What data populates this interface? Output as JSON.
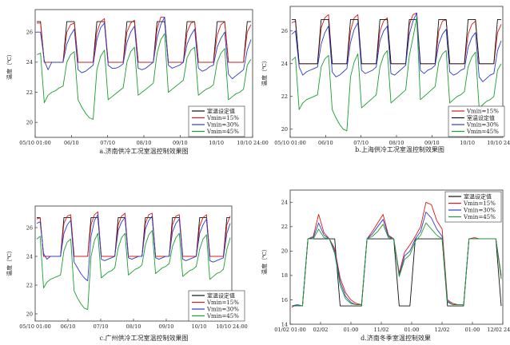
{
  "chart_data": [
    {
      "type": "line",
      "title": "a.济南供冷工况室温控制效果图",
      "ylabel": "温度（℃）",
      "ylim": [
        19,
        27.5
      ],
      "yticks": [
        20,
        22,
        24,
        26
      ],
      "xticks": [
        "05/10 01:00",
        "06/10",
        "07/10",
        "08/10",
        "09/10",
        "10/10",
        "10/10 24:00"
      ],
      "legend_position": "bottom-right",
      "series": [
        {
          "name": "室温设定值",
          "color": "#111111",
          "values": [
            26.7,
            26.7,
            24,
            24,
            24,
            24,
            24,
            24,
            26.7,
            26.7,
            26.7,
            24,
            24,
            24,
            24,
            24,
            26.7,
            26.7,
            26.7,
            24,
            24,
            24,
            24,
            24,
            26.7,
            26.7,
            26.7,
            24,
            24,
            24,
            24,
            24,
            26.7,
            26.7,
            26.7,
            24,
            24,
            24,
            24,
            24,
            26.7,
            26.7,
            26.7,
            24,
            24,
            24,
            24,
            24,
            26.7,
            26.7,
            26.7,
            24,
            24,
            24,
            24,
            24,
            26.7,
            26.7
          ]
        },
        {
          "name": "Vmin=15%",
          "color": "#d7191c",
          "values": [
            26.6,
            26.6,
            24,
            24,
            24,
            24,
            24,
            24,
            26,
            26.5,
            26.6,
            24,
            24,
            24,
            24,
            24,
            26,
            26.7,
            26.9,
            24,
            24,
            24,
            24,
            24,
            26,
            26.6,
            26.8,
            24,
            24,
            24,
            24,
            24,
            26.2,
            27,
            27,
            24,
            24,
            24,
            24,
            24,
            26,
            26.6,
            26.7,
            24,
            24,
            24,
            24,
            24,
            25.8,
            26.5,
            26.7,
            24,
            24,
            24,
            24,
            24,
            26,
            26.5
          ]
        },
        {
          "name": "Vmin=30%",
          "color": "#2c3cc8",
          "values": [
            26,
            26,
            24.1,
            23.5,
            24,
            24,
            24,
            24,
            25.2,
            25.8,
            26.2,
            23.5,
            23.3,
            23.4,
            23.6,
            23.8,
            25.5,
            26.3,
            26.6,
            23.8,
            23.6,
            23.6,
            23.7,
            23.9,
            25.3,
            26,
            26.4,
            23.6,
            23.5,
            23.6,
            23.8,
            24,
            25.6,
            26.5,
            27,
            23.8,
            23.6,
            23.7,
            23.8,
            24,
            25.2,
            25.8,
            26.2,
            23.6,
            23.4,
            23.5,
            23.7,
            23.8,
            25,
            25.6,
            26,
            23.2,
            22.9,
            23.1,
            23.3,
            23.5,
            24.8,
            25.5
          ]
        },
        {
          "name": "Vmin=45%",
          "color": "#1a9e2e",
          "values": [
            24.5,
            24.6,
            21.3,
            21.8,
            22,
            22.1,
            22.3,
            22.4,
            24,
            24.5,
            24.7,
            21.5,
            21,
            20.6,
            20.3,
            20.2,
            23.5,
            24.4,
            24.8,
            21.5,
            21.7,
            21.9,
            22.1,
            22.3,
            24,
            24.7,
            25,
            21.8,
            22,
            22.2,
            22.4,
            22.6,
            24.6,
            25.5,
            25.9,
            22,
            22.2,
            22.4,
            22.6,
            22.8,
            24.3,
            24.8,
            25,
            21.8,
            22,
            22.2,
            22.3,
            22.5,
            24,
            24.6,
            24.9,
            21.5,
            21.7,
            21.9,
            22,
            22.2,
            23.8,
            24.2
          ]
        }
      ]
    },
    {
      "type": "line",
      "title": "b.上海供冷工况室温控制效果图",
      "ylabel": "温度（℃）",
      "ylim": [
        19.5,
        27.5
      ],
      "yticks": [
        20,
        22,
        24,
        26
      ],
      "xticks": [
        "05/10 01:00",
        "06/10",
        "07/10",
        "08/10",
        "09/10",
        "10/10",
        "10/10 24:00"
      ],
      "legend_position": "bottom-right",
      "series": [
        {
          "name": "Vmin=15%",
          "color": "#d7191c",
          "values": [
            26.5,
            26.6,
            24,
            24,
            24,
            24,
            24,
            24,
            26.2,
            26.8,
            27,
            24,
            24,
            24,
            24,
            24,
            26,
            26.8,
            27,
            24,
            24,
            24,
            24,
            24,
            26,
            26.6,
            26.8,
            24,
            24,
            24,
            24,
            24,
            26.4,
            27,
            27.1,
            24,
            24,
            24,
            24,
            24,
            26,
            26.6,
            26.7,
            24,
            24,
            24,
            24,
            24,
            25.8,
            26.4,
            26.6,
            24,
            24,
            24,
            24,
            24,
            25.9,
            26.4
          ]
        },
        {
          "name": "室温设定值",
          "color": "#111111",
          "values": [
            26.7,
            26.7,
            24,
            24,
            24,
            24,
            24,
            24,
            26.7,
            26.7,
            26.7,
            24,
            24,
            24,
            24,
            24,
            26.7,
            26.7,
            26.7,
            24,
            24,
            24,
            24,
            24,
            26.7,
            26.7,
            26.7,
            24,
            24,
            24,
            24,
            24,
            26.7,
            26.7,
            26.7,
            24,
            24,
            24,
            24,
            24,
            26.7,
            26.7,
            26.7,
            24,
            24,
            24,
            24,
            24,
            26.7,
            26.7,
            26.7,
            24,
            24,
            24,
            24,
            24,
            26.7,
            26.7
          ]
        },
        {
          "name": "Vmin=30%",
          "color": "#2c3cc8",
          "values": [
            25.8,
            26,
            23.8,
            23.3,
            23.5,
            23.6,
            23.7,
            23.8,
            25.2,
            25.9,
            26.3,
            23.5,
            23.2,
            23.3,
            23.5,
            23.7,
            25.3,
            26.1,
            26.5,
            23.6,
            23.4,
            23.5,
            23.6,
            23.8,
            25.4,
            26,
            26.3,
            23.4,
            23.3,
            23.5,
            23.7,
            23.9,
            25.8,
            26.6,
            27.1,
            23.6,
            23.4,
            23.6,
            23.7,
            23.9,
            25.2,
            25.8,
            26.1,
            23.5,
            23.3,
            23.4,
            23.6,
            23.7,
            25,
            25.6,
            25.9,
            23.2,
            22.9,
            23.1,
            23.3,
            23.4,
            24.8,
            25.4
          ]
        },
        {
          "name": "Vmin=45%",
          "color": "#1a9e2e",
          "values": [
            24.2,
            24.4,
            21.2,
            21.6,
            21.8,
            21.9,
            22,
            22.1,
            23.8,
            24.3,
            24.5,
            21.2,
            20.7,
            20.3,
            20,
            19.9,
            23.2,
            24.1,
            24.6,
            21.3,
            21.5,
            21.7,
            21.9,
            22.1,
            23.8,
            24.5,
            24.8,
            21.6,
            21.8,
            22,
            22.2,
            22.4,
            24.5,
            25.6,
            26.8,
            21.8,
            22,
            22.2,
            22.4,
            22.6,
            24.1,
            24.6,
            24.8,
            21.6,
            21.8,
            22,
            22.1,
            22.3,
            23.8,
            24.4,
            24.7,
            21.3,
            21.5,
            21.7,
            21.8,
            22,
            23.6,
            24
          ]
        }
      ]
    },
    {
      "type": "line",
      "title": "c.广州供冷工况室温控制效果图",
      "ylabel": "温度（℃）",
      "ylim": [
        19.5,
        27.5
      ],
      "yticks": [
        20,
        22,
        24,
        26
      ],
      "xticks": [
        "05/10 01:00",
        "06/10",
        "07/10",
        "08/10",
        "09/10",
        "10/10",
        "10/10 24:00"
      ],
      "legend_position": "bottom-right",
      "series": [
        {
          "name": "室温设定值",
          "color": "#111111",
          "values": [
            26.7,
            26.7,
            24,
            24,
            24,
            24,
            24,
            24,
            26.7,
            26.7,
            26.7,
            24,
            24,
            24,
            24,
            24,
            26.7,
            26.7,
            26.7,
            24,
            24,
            24,
            24,
            24,
            26.7,
            26.7,
            26.7,
            24,
            24,
            24,
            24,
            24,
            26.7,
            26.7,
            26.7,
            24,
            24,
            24,
            24,
            24,
            26.7,
            26.7,
            26.7,
            24,
            24,
            24,
            24,
            24,
            26.7,
            26.7,
            26.7,
            24,
            24,
            24,
            24,
            24,
            26.7,
            26.7
          ]
        },
        {
          "name": "Vmin=15%",
          "color": "#d7191c",
          "values": [
            26.6,
            26.7,
            24,
            24,
            24,
            24,
            24,
            24,
            26.3,
            26.8,
            26.9,
            24,
            24,
            24,
            24,
            24,
            26.2,
            26.9,
            27.1,
            24,
            24,
            24,
            24,
            24,
            26.2,
            26.8,
            27,
            24,
            24,
            24,
            24,
            24,
            26.3,
            26.9,
            27,
            24,
            24,
            24,
            24,
            24,
            26.2,
            26.8,
            26.9,
            24,
            24,
            24,
            24,
            24,
            26.1,
            26.7,
            26.9,
            24,
            24,
            24,
            24,
            24,
            26.2,
            26.8
          ]
        },
        {
          "name": "Vmin=30%",
          "color": "#2c3cc8",
          "values": [
            26.3,
            26.4,
            24.2,
            23.8,
            24,
            24,
            24,
            24,
            25.6,
            26.2,
            26.5,
            23.6,
            23.2,
            22.8,
            22.5,
            22.3,
            25.4,
            26.5,
            26.9,
            23.8,
            23.7,
            23.8,
            23.9,
            24,
            25.8,
            26.4,
            26.7,
            23.9,
            23.8,
            23.9,
            24,
            24,
            25.9,
            26.5,
            26.8,
            23.9,
            23.8,
            23.9,
            24,
            24,
            25.7,
            26.3,
            26.6,
            23.8,
            23.7,
            23.8,
            23.9,
            24,
            25.6,
            26.2,
            26.6,
            23.7,
            23.6,
            23.7,
            23.8,
            23.9,
            25.6,
            26.3
          ]
        },
        {
          "name": "Vmin=45%",
          "color": "#1a9e2e",
          "values": [
            25.2,
            25.4,
            21.8,
            22.2,
            22.4,
            22.5,
            22.6,
            22.7,
            24.4,
            25,
            25.2,
            21.6,
            21.1,
            20.7,
            20.4,
            20.3,
            24,
            25.1,
            25.6,
            22.5,
            22.7,
            22.9,
            23,
            23.2,
            24.6,
            25.3,
            25.6,
            22.7,
            22.9,
            23.1,
            23.2,
            23.4,
            24.8,
            25.5,
            25.8,
            22.8,
            23,
            23.2,
            23.3,
            23.5,
            24.7,
            25.3,
            25.6,
            22.6,
            22.8,
            23,
            23.1,
            23.3,
            24.5,
            25.2,
            25.5,
            22.4,
            22.6,
            22.8,
            22.9,
            23.1,
            24.5,
            25.3
          ]
        }
      ]
    },
    {
      "type": "line",
      "title": "d.济南冬季室温控制效果",
      "ylabel": "温度（℃）",
      "ylim": [
        14,
        25
      ],
      "yticks": [
        14,
        16,
        18,
        20,
        22,
        24
      ],
      "xticks": [
        "01/02 01:00",
        "02/02",
        "01:00",
        "11/02",
        "01:00",
        "12/02",
        "01:00",
        "12/02 24:00"
      ],
      "legend_position": "top-right",
      "series": [
        {
          "name": "室温设定值",
          "color": "#111111",
          "values": [
            15.5,
            15.5,
            15.5,
            21,
            21,
            21,
            21,
            21,
            21,
            15.5,
            15.5,
            15.5,
            15.5,
            15.5,
            21,
            21,
            21,
            21,
            21,
            21,
            15.5,
            15.5,
            15.5,
            21,
            21,
            21,
            21,
            21,
            21,
            15.5,
            15.5,
            15.5,
            15.5,
            21,
            21,
            21,
            21,
            21,
            21,
            15.5
          ]
        },
        {
          "name": "Vmin=15%",
          "color": "#d7191c",
          "values": [
            15.4,
            15.6,
            15.5,
            21,
            21.2,
            23,
            21.5,
            21,
            20.2,
            17.8,
            16.6,
            16,
            15.7,
            15.6,
            21,
            21.6,
            22.3,
            23,
            21.3,
            21,
            18.2,
            19.9,
            20.5,
            21.2,
            22,
            24,
            23.8,
            22.5,
            21.8,
            16,
            15.7,
            15.6,
            15.6,
            21,
            21.1,
            21,
            21,
            21,
            21,
            18
          ]
        },
        {
          "name": "Vmin=30%",
          "color": "#2c3cc8",
          "values": [
            15.5,
            15.6,
            15.5,
            21,
            21.1,
            22.3,
            21.3,
            21,
            20,
            17.5,
            16.3,
            15.8,
            15.6,
            15.6,
            21,
            21.4,
            22,
            22.6,
            21.2,
            21,
            18,
            19.6,
            20,
            21,
            21.6,
            23.2,
            22.7,
            21.8,
            21.2,
            15.9,
            15.6,
            15.6,
            15.6,
            21,
            21,
            21,
            21,
            21,
            21,
            17.8
          ]
        },
        {
          "name": "Vmin=45%",
          "color": "#1a9e2e",
          "values": [
            15.5,
            15.5,
            15.5,
            21,
            21,
            21.8,
            21.1,
            21,
            19.8,
            17.2,
            16.1,
            15.7,
            15.6,
            15.6,
            21,
            21.2,
            21.6,
            22.2,
            21.1,
            21,
            17.9,
            19.3,
            19.7,
            20.8,
            21.3,
            22.3,
            21.8,
            21.3,
            21,
            15.8,
            15.6,
            15.6,
            15.6,
            21,
            21,
            21,
            21,
            21,
            21,
            17.7
          ]
        }
      ]
    }
  ]
}
